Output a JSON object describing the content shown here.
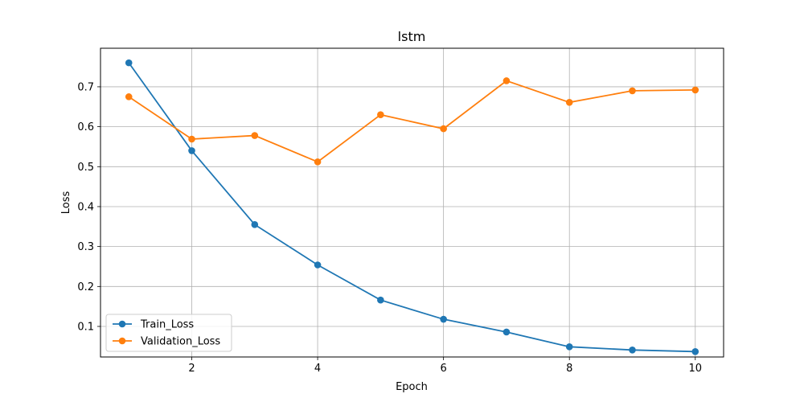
{
  "chart_data": {
    "type": "line",
    "title": "lstm",
    "xlabel": "Epoch",
    "ylabel": "Loss",
    "xlim": [
      0.55,
      10.45
    ],
    "ylim": [
      0.0235,
      0.7965
    ],
    "xticks": [
      2,
      4,
      6,
      8,
      10
    ],
    "yticks": [
      0.1,
      0.2,
      0.3,
      0.4,
      0.5,
      0.6,
      0.7
    ],
    "grid": true,
    "legend_position": "lower-left",
    "x": [
      1,
      2,
      3,
      4,
      5,
      6,
      7,
      8,
      9,
      10
    ],
    "series": [
      {
        "name": "Train_Loss",
        "color": "#1f77b4",
        "values": [
          0.76,
          0.54,
          0.355,
          0.254,
          0.166,
          0.118,
          0.086,
          0.049,
          0.041,
          0.037
        ]
      },
      {
        "name": "Validation_Loss",
        "color": "#ff7f0e",
        "values": [
          0.675,
          0.569,
          0.578,
          0.512,
          0.63,
          0.595,
          0.715,
          0.661,
          0.69,
          0.692
        ]
      }
    ]
  }
}
